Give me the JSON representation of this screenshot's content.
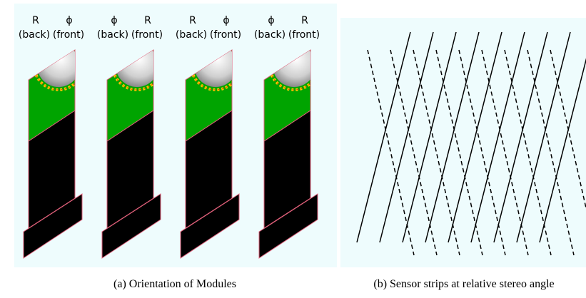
{
  "modules": [
    {
      "top_left": "R",
      "top_right": "ϕ",
      "sub_left": "(back)",
      "sub_right": "(front)"
    },
    {
      "top_left": "ϕ",
      "top_right": "R",
      "sub_left": "(back)",
      "sub_right": "(front)"
    },
    {
      "top_left": "R",
      "top_right": "ϕ",
      "sub_left": "(back)",
      "sub_right": "(front)"
    },
    {
      "top_left": "ϕ",
      "top_right": "R",
      "sub_left": "(back)",
      "sub_right": "(front)"
    }
  ],
  "captions": {
    "a": "(a)  Orientation of Modules",
    "b": "(b)  Sensor strips at relative stereo angle"
  }
}
